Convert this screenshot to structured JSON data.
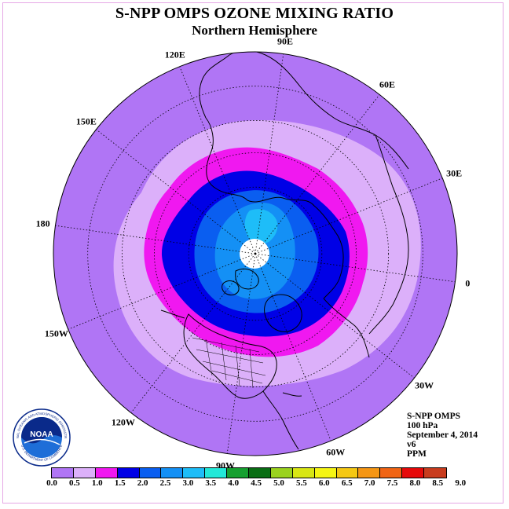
{
  "title": "S-NPP OMPS OZONE MIXING RATIO",
  "subtitle": "Northern Hemisphere",
  "longitude_labels": [
    {
      "text": "90E",
      "lon": 90
    },
    {
      "text": "60E",
      "lon": 60
    },
    {
      "text": "30E",
      "lon": 30
    },
    {
      "text": "0",
      "lon": 0
    },
    {
      "text": "30W",
      "lon": -30
    },
    {
      "text": "60W",
      "lon": -60
    },
    {
      "text": "90W",
      "lon": -90
    },
    {
      "text": "120W",
      "lon": -120
    },
    {
      "text": "150W",
      "lon": -150
    },
    {
      "text": "180",
      "lon": 180
    },
    {
      "text": "150E",
      "lon": 150
    },
    {
      "text": "120E",
      "lon": 120
    }
  ],
  "info": {
    "instrument": "S-NPP OMPS",
    "level": "100 hPa",
    "date": "September 4, 2014",
    "version": "v6",
    "units": "PPM"
  },
  "colorbar": {
    "ticks": [
      "0.0",
      "0.5",
      "1.0",
      "1.5",
      "2.0",
      "2.5",
      "3.0",
      "3.5",
      "4.0",
      "4.5",
      "5.0",
      "5.5",
      "6.0",
      "6.5",
      "7.0",
      "7.5",
      "8.0",
      "8.5",
      "9.0"
    ],
    "colors": [
      "#b075f5",
      "#dcb0fa",
      "#f018f0",
      "#0000e6",
      "#0a5ef0",
      "#1490f5",
      "#1ebdf8",
      "#22e8d8",
      "#16a030",
      "#0a6e14",
      "#9ad21e",
      "#d8e614",
      "#f5f514",
      "#f5c814",
      "#f59614",
      "#f06414",
      "#e60a0a",
      "#c83c1e",
      "#8c5a32"
    ]
  },
  "map_colors": {
    "band_0_0p5": "#b075f5",
    "band_0p5_1": "#dcb0fa",
    "band_1_1p5": "#f018f0",
    "band_1p5_2": "#0000e6",
    "band_2_2p5": "#0a5ef0",
    "band_2p5_3": "#1490f5",
    "band_3_3p5": "#1ebdf8",
    "missing": "#ffffff"
  },
  "logo": {
    "text": "NOAA",
    "ring_text": "NATIONAL OCEANIC AND ATMOSPHERIC ADMINISTRATION",
    "ring_text_bottom": "U.S. DEPARTMENT OF COMMERCE"
  }
}
